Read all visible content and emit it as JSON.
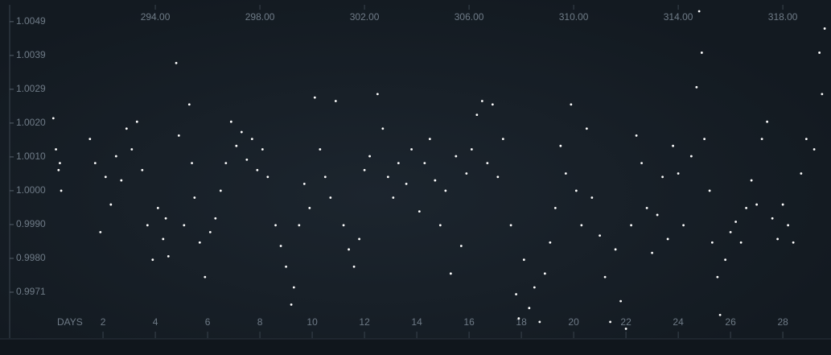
{
  "chart_data": {
    "type": "scatter",
    "x_axis_label": "DAYS",
    "color": "#ffffff",
    "xlim": [
      -1.94,
      29.75
    ],
    "xticks": [
      2,
      4,
      6,
      8,
      10,
      12,
      14,
      16,
      18,
      20,
      22,
      24,
      26,
      28
    ],
    "x2lim": [
      288.06,
      319.75
    ],
    "x2ticks": [
      {
        "value": 294,
        "label": "294.00"
      },
      {
        "value": 298,
        "label": "298.00"
      },
      {
        "value": 302,
        "label": "302.00"
      },
      {
        "value": 306,
        "label": "306.00"
      },
      {
        "value": 310,
        "label": "310.00"
      },
      {
        "value": 314,
        "label": "314.00"
      },
      {
        "value": 318,
        "label": "318.00"
      }
    ],
    "ylim": [
      0.99573,
      1.00534
    ],
    "yticks": [
      1.0049,
      {
        "value": 1.00392,
        "label": "1.0039"
      },
      {
        "value": 1.00294,
        "label": "1.0029"
      },
      {
        "value": 1.00196,
        "label": "1.0020"
      },
      {
        "value": 1.00098,
        "label": "1.0010"
      },
      {
        "value": 1,
        "label": "1.0000"
      },
      {
        "value": 0.99902,
        "label": "0.9990"
      },
      {
        "value": 0.99804,
        "label": "0.9980"
      },
      {
        "value": 0.99706,
        "label": "0.9971"
      }
    ],
    "grid": false,
    "x": [
      0.1,
      0.2,
      0.3,
      0.4,
      0.35,
      1.5,
      1.7,
      1.9,
      2.1,
      2.3,
      2.5,
      2.7,
      2.9,
      3.1,
      3.3,
      3.5,
      3.7,
      3.9,
      4.1,
      4.3,
      4.5,
      4.4,
      4.8,
      4.9,
      5.1,
      5.3,
      5.4,
      5.5,
      5.7,
      5.9,
      6.1,
      6.3,
      6.5,
      6.7,
      6.9,
      7.1,
      7.3,
      7.5,
      7.7,
      7.9,
      8.1,
      8.3,
      8.6,
      8.8,
      9.0,
      9.2,
      9.3,
      9.5,
      9.7,
      9.9,
      10.1,
      10.3,
      10.5,
      10.7,
      10.9,
      11.2,
      11.4,
      11.6,
      11.8,
      12.0,
      12.2,
      12.5,
      12.7,
      12.9,
      13.1,
      13.3,
      13.6,
      13.8,
      14.1,
      14.3,
      14.5,
      14.7,
      14.9,
      15.1,
      15.3,
      15.5,
      15.7,
      15.9,
      16.1,
      16.3,
      16.5,
      16.7,
      16.9,
      17.1,
      17.3,
      17.6,
      17.8,
      17.9,
      18.1,
      18.3,
      18.5,
      18.7,
      18.9,
      19.1,
      19.3,
      19.5,
      19.7,
      19.9,
      20.1,
      20.3,
      20.5,
      20.7,
      21.0,
      21.2,
      21.4,
      21.6,
      21.8,
      22.0,
      22.2,
      22.4,
      22.6,
      22.8,
      23.0,
      23.2,
      23.4,
      23.6,
      23.8,
      24.0,
      24.2,
      24.5,
      24.7,
      24.8,
      24.9,
      25.0,
      25.2,
      25.3,
      25.5,
      25.6,
      25.8,
      26.0,
      26.2,
      26.4,
      26.6,
      26.8,
      27.0,
      27.2,
      27.4,
      27.6,
      27.8,
      28.0,
      28.2,
      28.4,
      28.7,
      28.9,
      29.2,
      29.4,
      29.5,
      29.6
    ],
    "values": [
      1.0021,
      1.0012,
      1.0006,
      1.0,
      1.0008,
      1.0015,
      1.0008,
      0.9988,
      1.0004,
      0.9996,
      1.001,
      1.0003,
      1.0018,
      1.0012,
      1.002,
      1.0006,
      0.999,
      0.998,
      0.9995,
      0.9986,
      0.9981,
      0.9992,
      1.0037,
      1.0016,
      0.999,
      1.0025,
      1.0008,
      0.9998,
      0.9985,
      0.9975,
      0.9988,
      0.9992,
      1.0,
      1.0008,
      1.002,
      1.0013,
      1.0017,
      1.0009,
      1.0015,
      1.0006,
      1.0012,
      1.0004,
      0.999,
      0.9984,
      0.9978,
      0.9967,
      0.9972,
      0.999,
      1.0002,
      0.9995,
      1.0027,
      1.0012,
      1.0004,
      0.9998,
      1.0026,
      0.999,
      0.9983,
      0.9978,
      0.9986,
      1.0006,
      1.001,
      1.0028,
      1.0018,
      1.0004,
      0.9998,
      1.0008,
      1.0002,
      1.0012,
      0.9994,
      1.0008,
      1.0015,
      1.0003,
      0.999,
      1.0,
      0.9976,
      1.001,
      0.9984,
      1.0005,
      1.0012,
      1.0022,
      1.0026,
      1.0008,
      1.0025,
      1.0004,
      1.0015,
      0.999,
      0.997,
      0.9963,
      0.998,
      0.9966,
      0.9972,
      0.9962,
      0.9976,
      0.9985,
      0.9995,
      1.0013,
      1.0005,
      1.0025,
      1.0,
      0.999,
      1.0018,
      0.9998,
      0.9987,
      0.9975,
      0.9962,
      0.9983,
      0.9968,
      0.996,
      0.999,
      1.0016,
      1.0008,
      0.9995,
      0.9982,
      0.9993,
      1.0004,
      0.9986,
      1.0013,
      1.0005,
      0.999,
      1.001,
      1.003,
      1.0052,
      1.004,
      1.0015,
      1.0,
      0.9985,
      0.9975,
      0.9964,
      0.998,
      0.9988,
      0.9991,
      0.9985,
      0.9995,
      1.0003,
      0.9996,
      1.0015,
      1.002,
      0.9992,
      0.9986,
      0.9996,
      0.999,
      0.9985,
      1.0005,
      1.0015,
      1.0012,
      1.004,
      1.0028,
      1.0047
    ]
  }
}
